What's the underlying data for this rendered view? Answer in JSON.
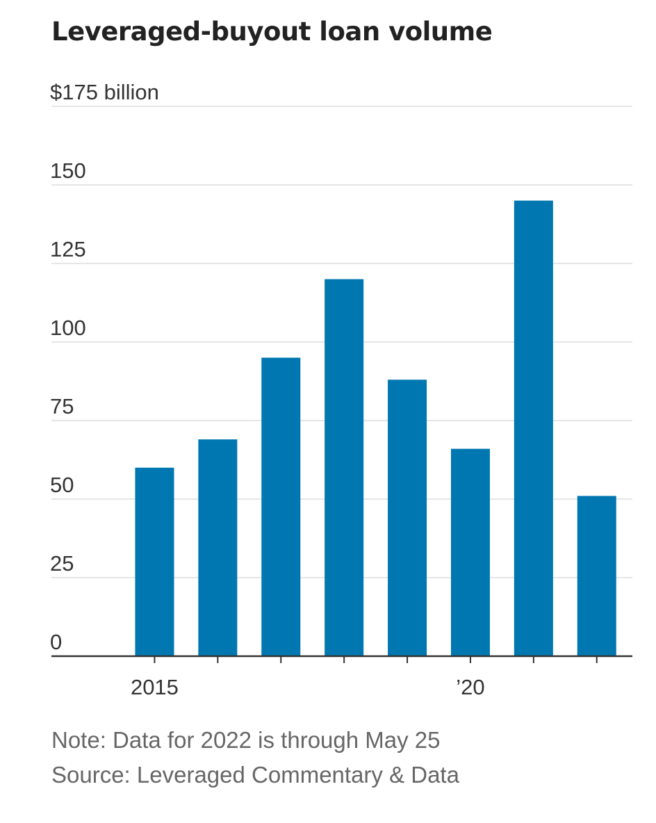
{
  "chart_data": {
    "type": "bar",
    "title": "Leveraged-buyout loan volume",
    "unit_label": "$175 billion",
    "categories": [
      "2015",
      "2016",
      "2017",
      "2018",
      "2019",
      "2020",
      "2021",
      "2022"
    ],
    "values": [
      60,
      69,
      95,
      120,
      88,
      66,
      145,
      51
    ],
    "x_tick_labels": [
      {
        "category": "2015",
        "label": "2015"
      },
      {
        "category": "2020",
        "label": "’20"
      }
    ],
    "y_ticks": [
      0,
      25,
      50,
      75,
      100,
      125,
      150,
      175
    ],
    "y_tick_labels": [
      "0",
      "25",
      "50",
      "75",
      "100",
      "125",
      "150",
      "$175 billion"
    ],
    "ylim": [
      0,
      175
    ],
    "grid": true,
    "bar_color": "#0077b0",
    "gridline_color": "#e6e6e6",
    "axis_color": "#333333",
    "note": "Note: Data for 2022 is through May 25",
    "source": "Source: Leveraged Commentary & Data"
  }
}
